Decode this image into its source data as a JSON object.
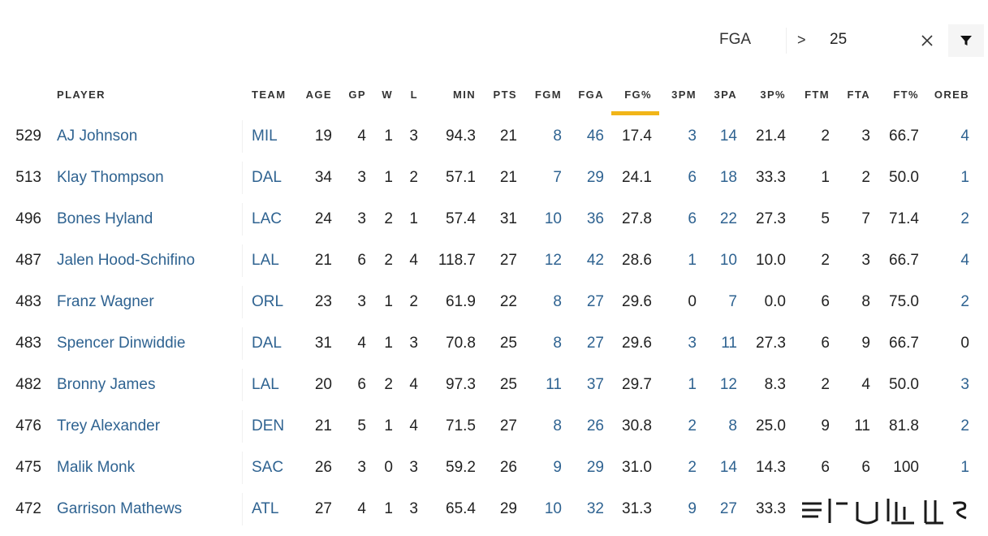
{
  "filter": {
    "field": "FGA",
    "operator": ">",
    "value": "25",
    "clear_icon": "close-icon",
    "filter_icon": "filter-funnel-icon"
  },
  "columns": {
    "player": "PLAYER",
    "team": "TEAM",
    "age": "AGE",
    "gp": "GP",
    "w": "W",
    "l": "L",
    "min": "MIN",
    "pts": "PTS",
    "fgm": "FGM",
    "fga": "FGA",
    "fgp": "FG%",
    "tpm": "3PM",
    "tpa": "3PA",
    "tpp": "3P%",
    "ftm": "FTM",
    "fta": "FTA",
    "ftp": "FT%",
    "oreb": "OREB"
  },
  "sorted_column": "FG%",
  "colors": {
    "link": "#2f6391",
    "sort_indicator": "#f1b519"
  },
  "rows": [
    {
      "rank": "529",
      "player": "AJ Johnson",
      "team": "MIL",
      "age": "19",
      "gp": "4",
      "w": "1",
      "l": "3",
      "min": "94.3",
      "pts": "21",
      "fgm": "8",
      "fga": "46",
      "fgp": "17.4",
      "tpm": "3",
      "tpa": "14",
      "tpp": "21.4",
      "ftm": "2",
      "fta": "3",
      "ftp": "66.7",
      "oreb": "4"
    },
    {
      "rank": "513",
      "player": "Klay Thompson",
      "team": "DAL",
      "age": "34",
      "gp": "3",
      "w": "1",
      "l": "2",
      "min": "57.1",
      "pts": "21",
      "fgm": "7",
      "fga": "29",
      "fgp": "24.1",
      "tpm": "6",
      "tpa": "18",
      "tpp": "33.3",
      "ftm": "1",
      "fta": "2",
      "ftp": "50.0",
      "oreb": "1"
    },
    {
      "rank": "496",
      "player": "Bones Hyland",
      "team": "LAC",
      "age": "24",
      "gp": "3",
      "w": "2",
      "l": "1",
      "min": "57.4",
      "pts": "31",
      "fgm": "10",
      "fga": "36",
      "fgp": "27.8",
      "tpm": "6",
      "tpa": "22",
      "tpp": "27.3",
      "ftm": "5",
      "fta": "7",
      "ftp": "71.4",
      "oreb": "2"
    },
    {
      "rank": "487",
      "player": "Jalen Hood-Schifino",
      "team": "LAL",
      "age": "21",
      "gp": "6",
      "w": "2",
      "l": "4",
      "min": "118.7",
      "pts": "27",
      "fgm": "12",
      "fga": "42",
      "fgp": "28.6",
      "tpm": "1",
      "tpa": "10",
      "tpp": "10.0",
      "ftm": "2",
      "fta": "3",
      "ftp": "66.7",
      "oreb": "4"
    },
    {
      "rank": "483",
      "player": "Franz Wagner",
      "team": "ORL",
      "age": "23",
      "gp": "3",
      "w": "1",
      "l": "2",
      "min": "61.9",
      "pts": "22",
      "fgm": "8",
      "fga": "27",
      "fgp": "29.6",
      "tpm": "0",
      "tpa": "7",
      "tpp": "0.0",
      "ftm": "6",
      "fta": "8",
      "ftp": "75.0",
      "oreb": "2"
    },
    {
      "rank": "483",
      "player": "Spencer Dinwiddie",
      "team": "DAL",
      "age": "31",
      "gp": "4",
      "w": "1",
      "l": "3",
      "min": "70.8",
      "pts": "25",
      "fgm": "8",
      "fga": "27",
      "fgp": "29.6",
      "tpm": "3",
      "tpa": "11",
      "tpp": "27.3",
      "ftm": "6",
      "fta": "9",
      "ftp": "66.7",
      "oreb": "0"
    },
    {
      "rank": "482",
      "player": "Bronny James",
      "team": "LAL",
      "age": "20",
      "gp": "6",
      "w": "2",
      "l": "4",
      "min": "97.3",
      "pts": "25",
      "fgm": "11",
      "fga": "37",
      "fgp": "29.7",
      "tpm": "1",
      "tpa": "12",
      "tpp": "8.3",
      "ftm": "2",
      "fta": "4",
      "ftp": "50.0",
      "oreb": "3"
    },
    {
      "rank": "476",
      "player": "Trey Alexander",
      "team": "DEN",
      "age": "21",
      "gp": "5",
      "w": "1",
      "l": "4",
      "min": "71.5",
      "pts": "27",
      "fgm": "8",
      "fga": "26",
      "fgp": "30.8",
      "tpm": "2",
      "tpa": "8",
      "tpp": "25.0",
      "ftm": "9",
      "fta": "11",
      "ftp": "81.8",
      "oreb": "2"
    },
    {
      "rank": "475",
      "player": "Malik Monk",
      "team": "SAC",
      "age": "26",
      "gp": "3",
      "w": "0",
      "l": "3",
      "min": "59.2",
      "pts": "26",
      "fgm": "9",
      "fga": "29",
      "fgp": "31.0",
      "tpm": "2",
      "tpa": "14",
      "tpp": "14.3",
      "ftm": "6",
      "fta": "6",
      "ftp": "100",
      "oreb": "1"
    },
    {
      "rank": "472",
      "player": "Garrison Mathews",
      "team": "ATL",
      "age": "27",
      "gp": "4",
      "w": "1",
      "l": "3",
      "min": "65.4",
      "pts": "29",
      "fgm": "10",
      "fga": "32",
      "fgp": "31.3",
      "tpm": "9",
      "tpa": "27",
      "tpp": "33.3",
      "ftm": "",
      "fta": "",
      "ftp": "",
      "oreb": ""
    }
  ]
}
